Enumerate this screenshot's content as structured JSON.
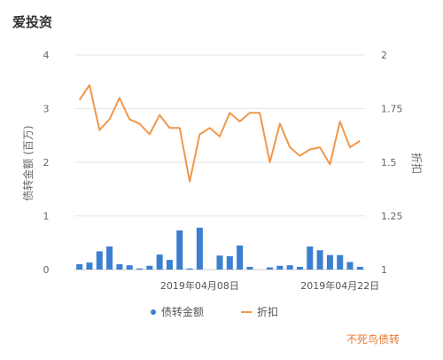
{
  "title": "爱投资",
  "watermark": "不死鸟债转",
  "chart_data": {
    "type": "bar+line",
    "y_left": {
      "label": "债转金额 (百万)",
      "ticks": [
        0,
        1,
        2,
        3,
        4
      ],
      "min": 0,
      "max": 4
    },
    "y_right": {
      "label": "折扣",
      "ticks": [
        "1",
        "1.25",
        "1.5",
        "1.75",
        "2"
      ],
      "min": 1,
      "max": 2
    },
    "x_labels": [
      "2019年04月08日",
      "2019年04月22日"
    ],
    "x_label_index": [
      12,
      26
    ],
    "legend": {
      "position": "bottom",
      "bar_name": "债转金额",
      "line_name": "折扣"
    },
    "bar_color": "#3b7fd1",
    "line_color": "#f0974a",
    "grid": true,
    "series": [
      {
        "name": "债转金额",
        "kind": "bar",
        "values": [
          0.1,
          0.13,
          0.34,
          0.43,
          0.1,
          0.08,
          0.02,
          0.07,
          0.28,
          0.18,
          0.73,
          0.02,
          0.78,
          0.0,
          0.26,
          0.25,
          0.45,
          0.05,
          0.0,
          0.04,
          0.07,
          0.08,
          0.05,
          0.43,
          0.36,
          0.27,
          0.27,
          0.14,
          0.05
        ]
      },
      {
        "name": "折扣",
        "kind": "line",
        "values": [
          1.79,
          1.86,
          1.65,
          1.7,
          1.8,
          1.7,
          1.68,
          1.63,
          1.72,
          1.66,
          1.66,
          1.41,
          1.63,
          1.66,
          1.62,
          1.73,
          1.69,
          1.73,
          1.73,
          1.5,
          1.68,
          1.57,
          1.53,
          1.56,
          1.57,
          1.49,
          1.69,
          1.57,
          1.6
        ]
      }
    ]
  }
}
